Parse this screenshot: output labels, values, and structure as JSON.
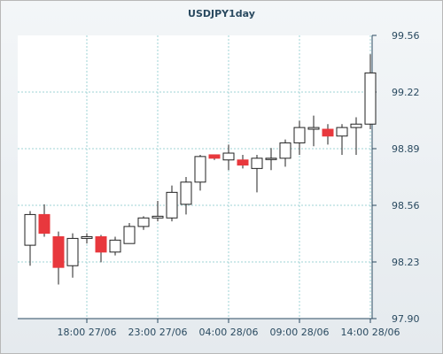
{
  "chart_data": {
    "type": "candlestick",
    "title": "USDJPY1day",
    "y_ticks": [
      "99.56",
      "99.22",
      "98.89",
      "98.56",
      "98.23",
      "97.90"
    ],
    "x_ticks": [
      "18:00 27/06",
      "23:00 27/06",
      "04:00 28/06",
      "09:00 28/06",
      "14:00 28/06"
    ],
    "ylim": [
      97.9,
      99.56
    ],
    "grid": true,
    "colors": {
      "up": "#ffffff",
      "down": "#e8383d",
      "wick": "#222222",
      "grid": "#9fd3d6",
      "axis": "#2a4a60"
    },
    "candles": [
      {
        "open": 98.33,
        "high": 98.53,
        "low": 98.21,
        "close": 98.51
      },
      {
        "open": 98.51,
        "high": 98.57,
        "low": 98.38,
        "close": 98.4
      },
      {
        "open": 98.38,
        "high": 98.41,
        "low": 98.1,
        "close": 98.2
      },
      {
        "open": 98.21,
        "high": 98.4,
        "low": 98.14,
        "close": 98.37
      },
      {
        "open": 98.37,
        "high": 98.4,
        "low": 98.34,
        "close": 98.38
      },
      {
        "open": 98.38,
        "high": 98.39,
        "low": 98.23,
        "close": 98.29
      },
      {
        "open": 98.29,
        "high": 98.38,
        "low": 98.27,
        "close": 98.36
      },
      {
        "open": 98.34,
        "high": 98.46,
        "low": 98.34,
        "close": 98.44
      },
      {
        "open": 98.44,
        "high": 98.5,
        "low": 98.42,
        "close": 98.49
      },
      {
        "open": 98.49,
        "high": 98.59,
        "low": 98.47,
        "close": 98.5
      },
      {
        "open": 98.49,
        "high": 98.68,
        "low": 98.47,
        "close": 98.64
      },
      {
        "open": 98.57,
        "high": 98.73,
        "low": 98.51,
        "close": 98.7
      },
      {
        "open": 98.7,
        "high": 98.86,
        "low": 98.65,
        "close": 98.85
      },
      {
        "open": 98.86,
        "high": 98.86,
        "low": 98.83,
        "close": 98.84
      },
      {
        "open": 98.83,
        "high": 98.92,
        "low": 98.77,
        "close": 98.87
      },
      {
        "open": 98.83,
        "high": 98.86,
        "low": 98.78,
        "close": 98.8
      },
      {
        "open": 98.78,
        "high": 98.86,
        "low": 98.64,
        "close": 98.84
      },
      {
        "open": 98.84,
        "high": 98.9,
        "low": 98.77,
        "close": 98.84
      },
      {
        "open": 98.84,
        "high": 98.95,
        "low": 98.79,
        "close": 98.93
      },
      {
        "open": 98.93,
        "high": 99.06,
        "low": 98.86,
        "close": 99.02
      },
      {
        "open": 99.01,
        "high": 99.09,
        "low": 98.91,
        "close": 99.02
      },
      {
        "open": 99.01,
        "high": 99.04,
        "low": 98.92,
        "close": 98.97
      },
      {
        "open": 98.97,
        "high": 99.04,
        "low": 98.86,
        "close": 99.02
      },
      {
        "open": 99.02,
        "high": 99.08,
        "low": 98.86,
        "close": 99.04
      },
      {
        "open": 99.04,
        "high": 99.45,
        "low": 99.01,
        "close": 99.34
      }
    ]
  }
}
